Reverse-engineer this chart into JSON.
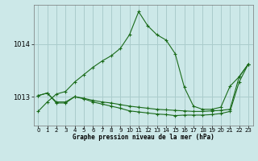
{
  "title": "Graphe pression niveau de la mer (hPa)",
  "bg_color": "#cce8e8",
  "grid_color": "#aacccc",
  "line_color": "#1a6b1a",
  "yticks": [
    1013,
    1014
  ],
  "ylim": [
    1012.45,
    1014.75
  ],
  "xlim": [
    -0.5,
    23.5
  ],
  "xticks": [
    0,
    1,
    2,
    3,
    4,
    5,
    6,
    7,
    8,
    9,
    10,
    11,
    12,
    13,
    14,
    15,
    16,
    17,
    18,
    19,
    20,
    21,
    22,
    23
  ],
  "series1": [
    1012.72,
    1012.9,
    1013.05,
    1013.1,
    1013.28,
    1013.42,
    1013.56,
    1013.68,
    1013.78,
    1013.92,
    1014.18,
    1014.62,
    1014.35,
    1014.18,
    1014.08,
    1013.82,
    1013.18,
    1012.82,
    1012.76,
    1012.76,
    1012.8,
    1013.2,
    1013.38,
    1013.62
  ],
  "series2": [
    1013.02,
    1013.07,
    1012.88,
    1012.88,
    1013.0,
    1012.96,
    1012.9,
    1012.86,
    1012.82,
    1012.78,
    1012.73,
    1012.71,
    1012.69,
    1012.67,
    1012.66,
    1012.64,
    1012.65,
    1012.65,
    1012.65,
    1012.66,
    1012.68,
    1012.72,
    1013.28,
    1013.62
  ],
  "series3": [
    1013.02,
    1013.07,
    1012.9,
    1012.9,
    1013.0,
    1012.97,
    1012.93,
    1012.9,
    1012.88,
    1012.85,
    1012.82,
    1012.8,
    1012.78,
    1012.76,
    1012.75,
    1012.74,
    1012.73,
    1012.72,
    1012.72,
    1012.73,
    1012.74,
    1012.76,
    1013.38,
    1013.62
  ]
}
